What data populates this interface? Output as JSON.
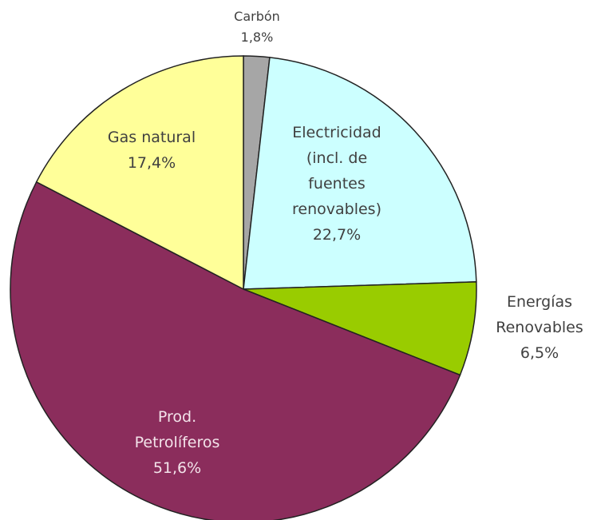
{
  "chart_data": {
    "type": "pie",
    "categories": [
      "Carbón",
      "Electricidad\n(incl. de\nfuentes\nrenovables)",
      "Energías\nRenovables",
      "Prod.\nPetrolíferos",
      "Gas natural"
    ],
    "values": [
      1.8,
      22.7,
      6.5,
      51.6,
      17.4
    ],
    "value_labels": [
      "1,8%",
      "22,7%",
      "6,5%",
      "51,6%",
      "17,4%"
    ],
    "colors": [
      "#a6a6a6",
      "#ccffff",
      "#99cc00",
      "#8b2d5c",
      "#ffff99"
    ]
  }
}
